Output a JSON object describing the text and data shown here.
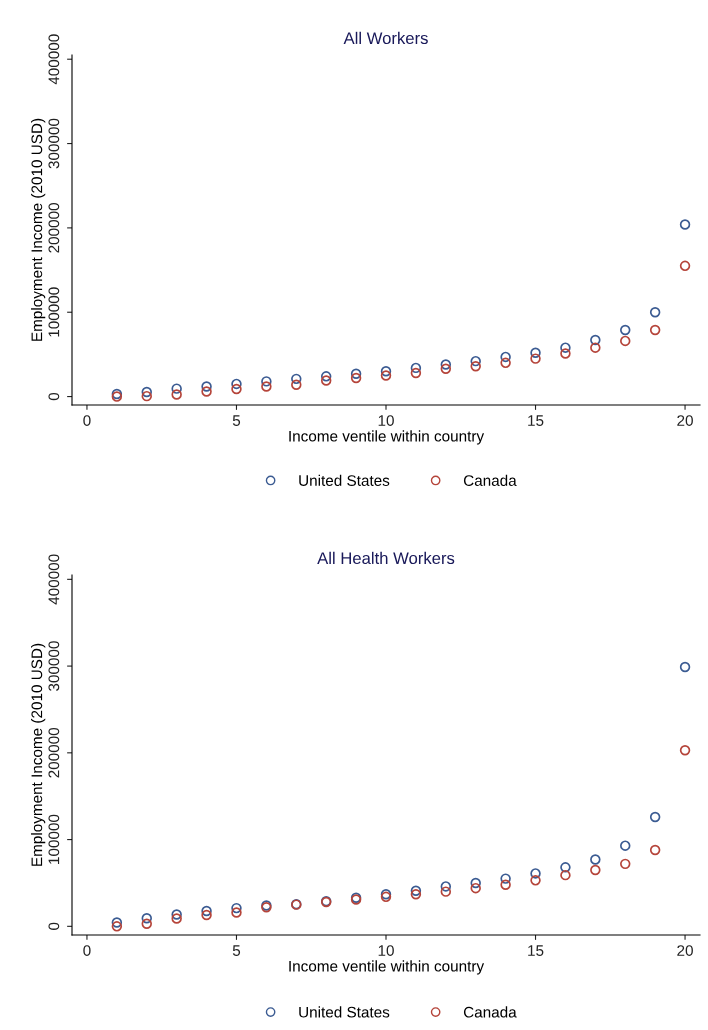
{
  "chart_data": [
    {
      "type": "scatter",
      "title": "All Workers",
      "xlabel": "Income ventile within country",
      "ylabel": "Employment Income (2010 USD)",
      "x": [
        1,
        2,
        3,
        4,
        5,
        6,
        7,
        8,
        9,
        10,
        11,
        12,
        13,
        14,
        15,
        16,
        17,
        18,
        19,
        20
      ],
      "series": [
        {
          "name": "United States",
          "color": "#3b5b92",
          "values": [
            3000,
            5400,
            9400,
            12000,
            15000,
            18000,
            21000,
            24000,
            27000,
            30000,
            34000,
            38000,
            42000,
            47000,
            52000,
            58000,
            67000,
            79000,
            100000,
            204000
          ]
        },
        {
          "name": "Canada",
          "color": "#b5443a",
          "values": [
            0,
            500,
            2500,
            6000,
            9000,
            12000,
            14000,
            19000,
            22000,
            25000,
            28000,
            33000,
            36000,
            40000,
            45000,
            51000,
            58000,
            66000,
            79000,
            155000
          ]
        }
      ],
      "xlim": [
        -0.5,
        20.5
      ],
      "xticks": [
        0,
        5,
        10,
        15,
        20
      ],
      "ylim": [
        -10000,
        405000
      ],
      "yticks": [
        0,
        100000,
        200000,
        300000,
        400000
      ],
      "grid": false,
      "legend": "bottom",
      "marker": "circle"
    },
    {
      "type": "scatter",
      "title": "All Health Workers",
      "xlabel": "Income ventile within country",
      "ylabel": "Employment Income (2010 USD)",
      "x": [
        1,
        2,
        3,
        4,
        5,
        6,
        7,
        8,
        9,
        10,
        11,
        12,
        13,
        14,
        15,
        16,
        17,
        18,
        19,
        20
      ],
      "series": [
        {
          "name": "United States",
          "color": "#3b5b92",
          "values": [
            4400,
            9300,
            13700,
            17600,
            21000,
            24000,
            25500,
            29000,
            33000,
            37000,
            41000,
            46000,
            50000,
            55000,
            61000,
            68000,
            77000,
            93000,
            126000,
            299000
          ]
        },
        {
          "name": "Canada",
          "color": "#b5443a",
          "values": [
            0,
            3000,
            9000,
            13000,
            16000,
            22000,
            25000,
            28000,
            31000,
            34000,
            37000,
            40000,
            44000,
            48000,
            53000,
            59000,
            65000,
            72000,
            88000,
            203000
          ]
        }
      ],
      "xlim": [
        -0.5,
        20.5
      ],
      "xticks": [
        0,
        5,
        10,
        15,
        20
      ],
      "ylim": [
        -10000,
        405000
      ],
      "yticks": [
        0,
        100000,
        200000,
        300000,
        400000
      ],
      "grid": false,
      "legend": "bottom",
      "marker": "circle"
    }
  ]
}
